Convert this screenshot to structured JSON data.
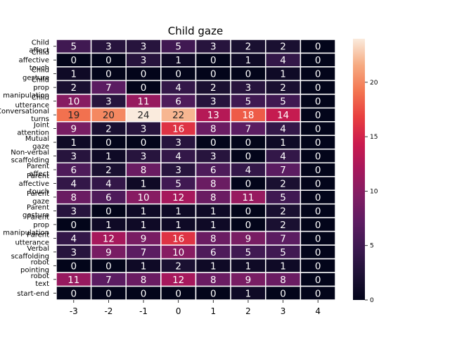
{
  "chart_data": {
    "type": "heatmap",
    "title": "Child gaze",
    "xlabel": "",
    "ylabel": "",
    "x_categories": [
      "-3",
      "-2",
      "-1",
      "0",
      "1",
      "2",
      "3",
      "4"
    ],
    "y_categories": [
      "Child\naffect",
      "Child\naffective\ntouch",
      "Child\ngesture",
      "Child\nprop\nmanipulation",
      "Child\nutterance",
      "Conversational\nturns",
      "Joint\nattention",
      "Mutual\ngaze",
      "Non-verbal\nscaffolding",
      "Parent\naffect",
      "Parent\naffective\ntouch",
      "Parent\ngaze",
      "Parent\ngesture",
      "Parent\nprop\nmanipulation",
      "Parent\nutterance",
      "Verbal\nscaffolding",
      "robot\npointing",
      "robot\ntext",
      "start-end"
    ],
    "values": [
      [
        5,
        3,
        3,
        5,
        3,
        2,
        2,
        0
      ],
      [
        0,
        0,
        3,
        1,
        0,
        1,
        4,
        0
      ],
      [
        1,
        0,
        0,
        0,
        0,
        0,
        1,
        0
      ],
      [
        2,
        7,
        0,
        4,
        2,
        3,
        2,
        0
      ],
      [
        10,
        3,
        11,
        6,
        3,
        5,
        5,
        0
      ],
      [
        19,
        20,
        24,
        22,
        13,
        18,
        14,
        0
      ],
      [
        9,
        2,
        3,
        16,
        8,
        7,
        4,
        0
      ],
      [
        1,
        0,
        0,
        3,
        0,
        0,
        1,
        0
      ],
      [
        3,
        1,
        3,
        4,
        3,
        0,
        4,
        0
      ],
      [
        6,
        2,
        8,
        3,
        6,
        4,
        7,
        0
      ],
      [
        4,
        4,
        1,
        5,
        8,
        0,
        2,
        0
      ],
      [
        8,
        6,
        10,
        12,
        8,
        11,
        5,
        0
      ],
      [
        3,
        0,
        1,
        1,
        1,
        0,
        2,
        0
      ],
      [
        0,
        1,
        1,
        1,
        1,
        0,
        2,
        0
      ],
      [
        4,
        12,
        9,
        16,
        8,
        9,
        7,
        0
      ],
      [
        3,
        9,
        7,
        10,
        6,
        5,
        5,
        0
      ],
      [
        0,
        0,
        1,
        2,
        1,
        1,
        1,
        0
      ],
      [
        11,
        7,
        8,
        12,
        8,
        9,
        8,
        0
      ],
      [
        0,
        0,
        0,
        0,
        0,
        1,
        0,
        0
      ]
    ],
    "vmin": 0,
    "vmax": 24,
    "colormap": "rocket",
    "colorbar_ticks": [
      0,
      5,
      10,
      15,
      20
    ],
    "cell_border_color": "#ffffff",
    "annotate": true
  }
}
